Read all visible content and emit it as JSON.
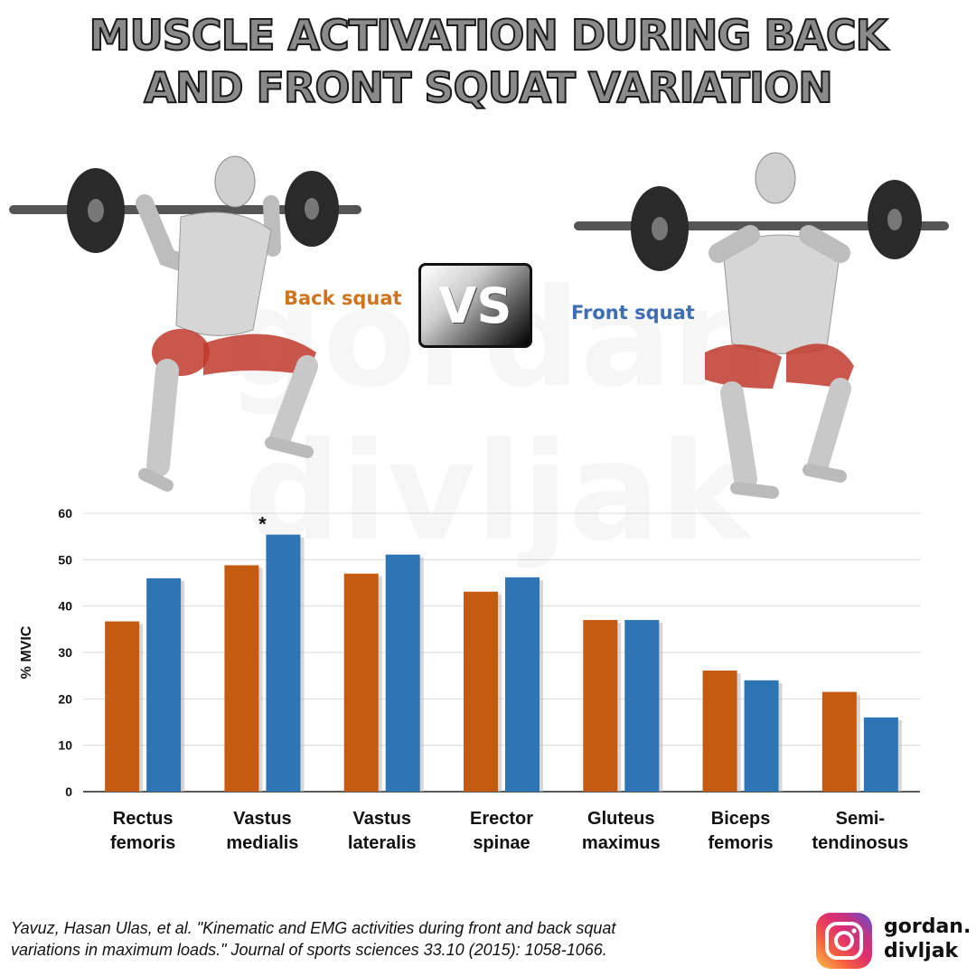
{
  "title_line1": "MUSCLE ACTIVATION DURING BACK",
  "title_line2": "AND FRONT SQUAT VARIATION",
  "label_back": "Back squat",
  "label_front": "Front squat",
  "vs": "VS",
  "watermark": [
    "gordan",
    "divljak"
  ],
  "citation_line1": "Yavuz, Hasan Ulas, et al. \"Kinematic and EMG activities during front and back squat",
  "citation_line2": "variations in maximum loads.\" Journal of sports sciences 33.10 (2015): 1058-1066.",
  "handle_line1": "gordan.",
  "handle_line2": "divljak",
  "colors": {
    "back": "#c55a11",
    "front": "#2e75b6",
    "title_fill": "#8a8a8a",
    "muscle": "#c0392b"
  },
  "chart_data": {
    "type": "bar",
    "categories": [
      [
        "Rectus",
        "femoris"
      ],
      [
        "Vastus",
        "medialis"
      ],
      [
        "Vastus",
        "lateralis"
      ],
      [
        "Erector",
        "spinae"
      ],
      [
        "Gluteus",
        "maximus"
      ],
      [
        "Biceps",
        "femoris"
      ],
      [
        "Semi-",
        "tendinosus"
      ]
    ],
    "series": [
      {
        "name": "Back squat",
        "color": "#c55a11",
        "values": [
          36.7,
          48.8,
          47.0,
          43.1,
          37.0,
          26.1,
          21.5
        ]
      },
      {
        "name": "Front squat",
        "color": "#2e75b6",
        "values": [
          46.0,
          55.4,
          51.1,
          46.2,
          37.0,
          24.0,
          16.0
        ]
      }
    ],
    "ylabel": "% MVIC",
    "ylim": [
      0,
      60
    ],
    "yticks": [
      0,
      10,
      20,
      30,
      40,
      50,
      60
    ],
    "grid": true,
    "annotations": [
      {
        "category_index": 1,
        "text": "*"
      }
    ]
  }
}
